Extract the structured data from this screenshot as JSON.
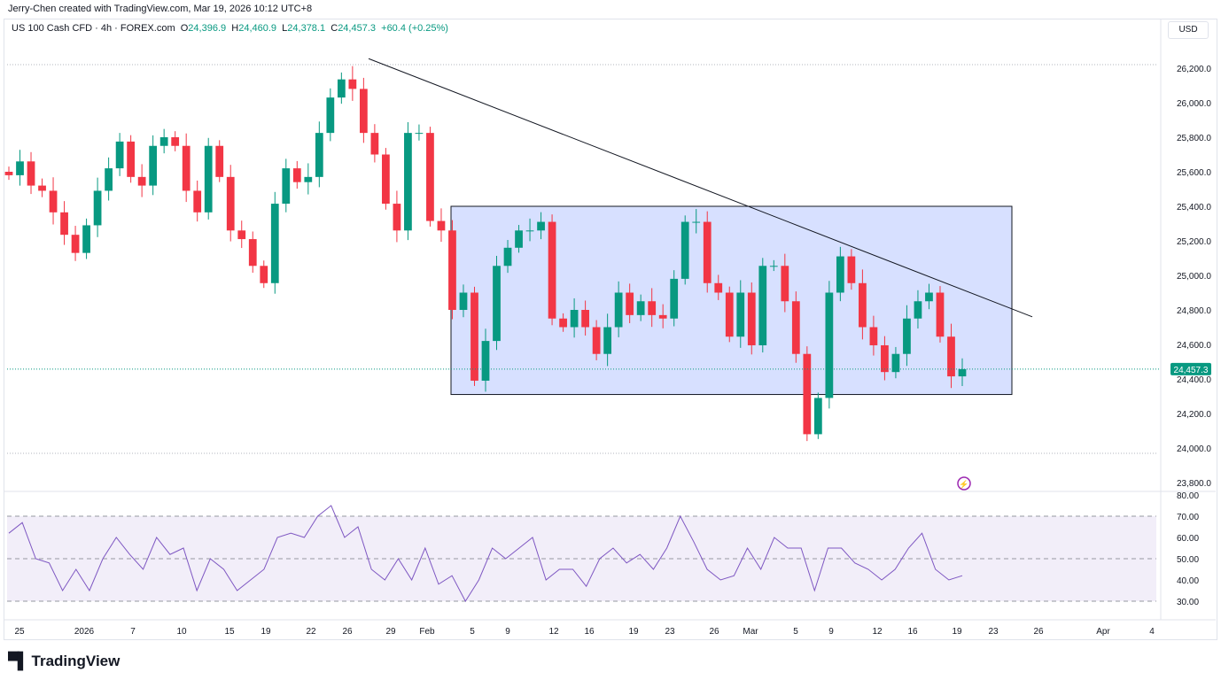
{
  "header": {
    "credit": "Jerry-Chen created with TradingView.com, Mar 19, 2026 10:12 UTC+8"
  },
  "legend": {
    "symbol": "US 100 Cash CFD · 4h · FOREX.com",
    "o_label": "O",
    "o": "24,396.9",
    "h_label": "H",
    "h": "24,460.9",
    "l_label": "L",
    "l": "24,378.1",
    "c_label": "C",
    "c": "24,457.3",
    "change": "+60.4 (+0.25%)"
  },
  "currency": "USD",
  "logo": "TradingView",
  "chart_data": {
    "type": "candlestick",
    "title": "US 100 Cash CFD · 4h · FOREX.com",
    "colors": {
      "up": "#089981",
      "down": "#f23645",
      "rsi": "#7e57c2",
      "box": "#c9d6ff",
      "last": "#089981"
    },
    "price_ticks": [
      "26,200.0",
      "26,000.0",
      "25,800.0",
      "25,600.0",
      "25,400.0",
      "25,200.0",
      "25,000.0",
      "24,800.0",
      "24,600.0",
      "24,400.0",
      "24,200.0",
      "24,000.0",
      "23,800.0"
    ],
    "price_values": [
      26200,
      26000,
      25800,
      25600,
      25400,
      25200,
      25000,
      24800,
      24600,
      24400,
      24200,
      24000,
      23800
    ],
    "last_price": "24,457.3",
    "last_price_value": 24457.3,
    "closes": [
      25580,
      25660,
      25520,
      25490,
      25365,
      25235,
      25130,
      25290,
      25490,
      25620,
      25775,
      25570,
      25520,
      25750,
      25800,
      25750,
      25490,
      25365,
      25750,
      25570,
      25260,
      25210,
      25055,
      24955,
      25415,
      25620,
      25540,
      25570,
      25825,
      26030,
      26135,
      26080,
      25825,
      25700,
      25415,
      25260,
      25825,
      25825,
      25315,
      25260,
      24800,
      24900,
      24390,
      24620,
      25055,
      25160,
      25260,
      25260,
      25310,
      24750,
      24700,
      24800,
      24700,
      24545,
      24700,
      24900,
      24770,
      24850,
      24770,
      24750,
      24980,
      25310,
      25310,
      24955,
      24900,
      24645,
      24900,
      24595,
      25055,
      25055,
      24850,
      24545,
      24080,
      24290,
      24900,
      25110,
      24955,
      24700,
      24595,
      24440,
      24545,
      24750,
      24850,
      24900,
      24645,
      24415,
      24457
    ],
    "rsi": {
      "name": "RSI",
      "levels": [
        70,
        50,
        30
      ],
      "ticks": [
        "80.00",
        "70.00",
        "60.00",
        "50.00",
        "40.00",
        "30.00"
      ],
      "tick_values": [
        80,
        70,
        60,
        50,
        40,
        30
      ],
      "values": [
        62,
        67,
        50,
        48,
        35,
        45,
        35,
        50,
        60,
        52,
        45,
        60,
        52,
        55,
        35,
        50,
        45,
        35,
        40,
        45,
        60,
        62,
        60,
        70,
        75,
        60,
        65,
        45,
        40,
        50,
        40,
        55,
        38,
        42,
        30,
        40,
        55,
        50,
        55,
        60,
        40,
        45,
        45,
        37,
        50,
        55,
        48,
        52,
        45,
        55,
        70,
        58,
        45,
        40,
        42,
        55,
        45,
        60,
        55,
        55,
        35,
        55,
        55,
        48,
        45,
        40,
        45,
        55,
        62,
        45,
        40,
        42
      ]
    },
    "time_ticks": [
      "25",
      "2026",
      "7",
      "10",
      "15",
      "19",
      "22",
      "26",
      "29",
      "Feb",
      "5",
      "9",
      "12",
      "16",
      "19",
      "23",
      "26",
      "Mar",
      "5",
      "9",
      "12",
      "16",
      "19",
      "23",
      "26",
      "Apr",
      "4"
    ],
    "range_box": {
      "top": 25400,
      "bottom": 24310
    },
    "trendline": {
      "start": 26255,
      "end": 24760
    }
  }
}
